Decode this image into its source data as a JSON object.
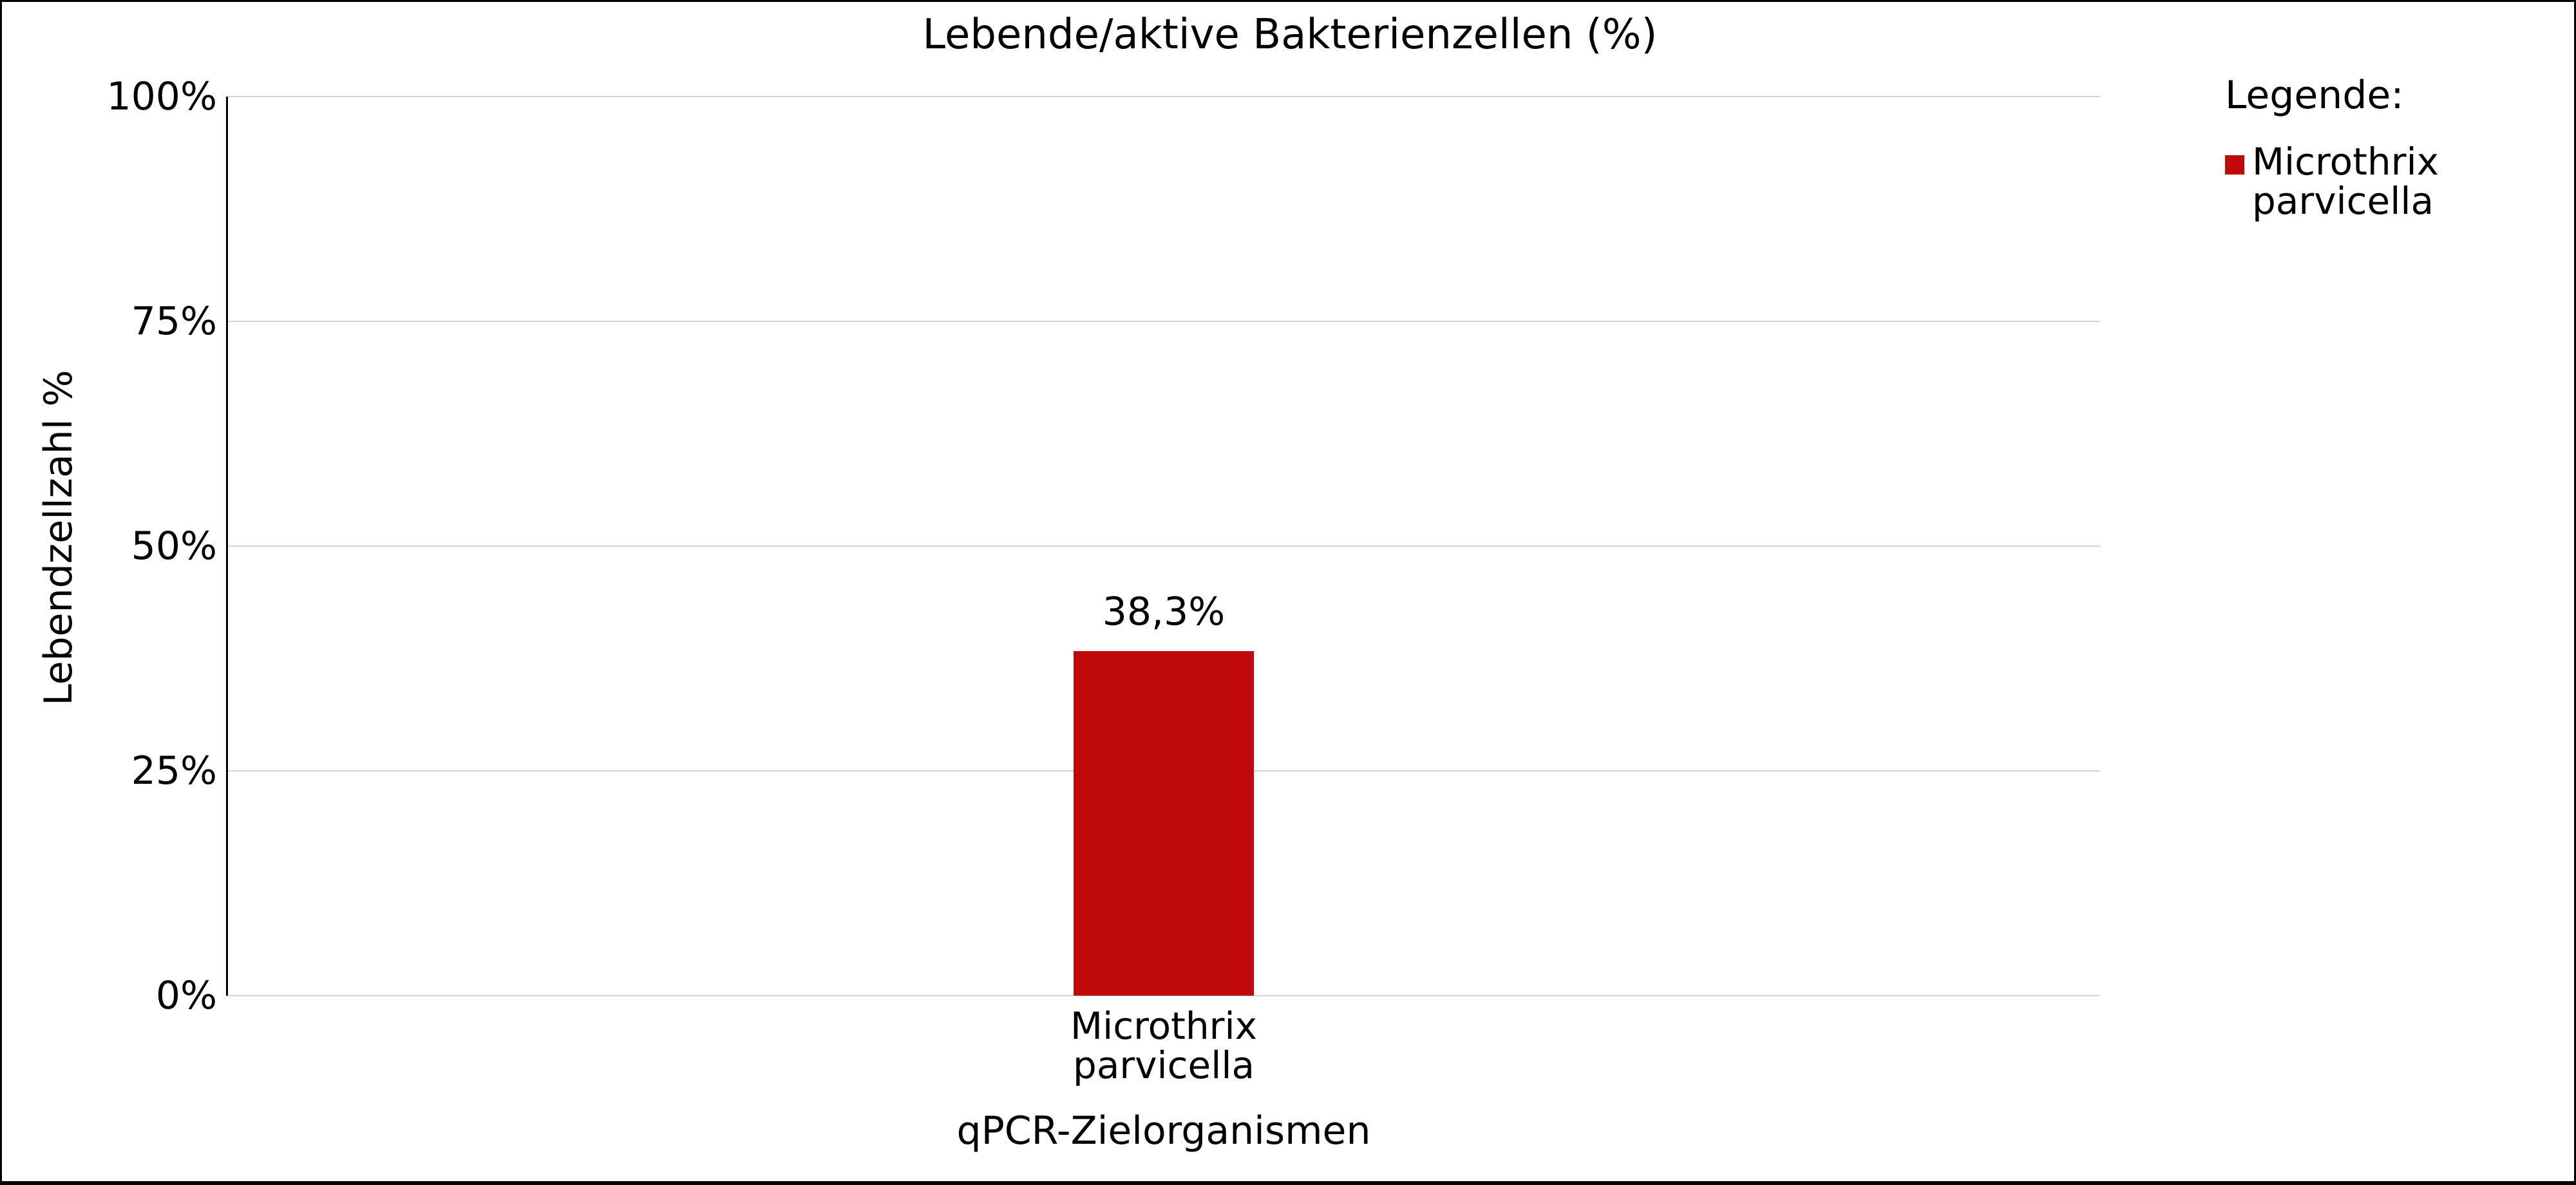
{
  "chart_data": {
    "type": "bar",
    "title": "Lebende/aktive Bakterienzellen (%)",
    "xlabel": "qPCR-Zielorganismen",
    "ylabel": "Lebendzellzahl %",
    "categories": [
      "Microthrix\nparvicella"
    ],
    "series": [
      {
        "name": "Microthrix parvicella",
        "values": [
          38.3
        ],
        "color": "#c00a0a"
      }
    ],
    "value_labels": [
      "38,3%"
    ],
    "ylim": [
      0,
      100
    ],
    "yticks": [
      {
        "value": 0,
        "label": "0%"
      },
      {
        "value": 25,
        "label": "25%"
      },
      {
        "value": 50,
        "label": "50%"
      },
      {
        "value": 75,
        "label": "75%"
      },
      {
        "value": 100,
        "label": "100%"
      }
    ],
    "grid": "horizontal",
    "legend": {
      "title": "Legende:",
      "position": "top-right",
      "items": [
        {
          "label": "Microthrix\nparvicella",
          "color": "#c00a0a"
        }
      ]
    }
  },
  "colors": {
    "bar": "#c00a0a",
    "gridline": "#d4d4d4",
    "axis": "#000000",
    "background": "#ffffff",
    "border": "#000000",
    "text": "#000000"
  }
}
